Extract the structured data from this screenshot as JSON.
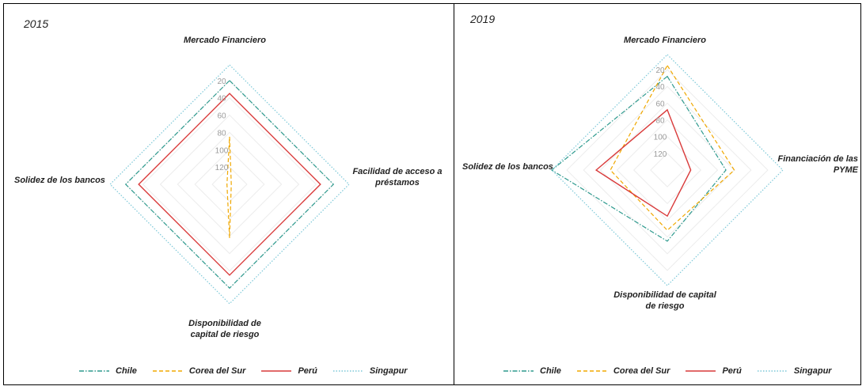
{
  "chart_data": [
    {
      "type": "radar",
      "title": "2015",
      "axes": [
        "Mercado Financiero",
        "Facilidad de acceso a préstamos",
        "Disponibilidad de capital de riesgo",
        "Solidez de los bancos"
      ],
      "axis_label_lines": [
        [
          "Mercado Financiero"
        ],
        [
          "Facilidad de acceso a",
          "préstamos"
        ],
        [
          "Disponibilidad de",
          "capital de riesgo"
        ],
        [
          "Solidez de los bancos"
        ]
      ],
      "ticks": [
        "20",
        "40",
        "60",
        "80",
        "100",
        "120"
      ],
      "scale": {
        "min": 1,
        "max": 140,
        "reversed": true
      },
      "series": [
        {
          "name": "Chile",
          "color": "#2e9a8e",
          "dash": "dashdot",
          "values": [
            20,
            20,
            20,
            20
          ]
        },
        {
          "name": "Corea del Sur",
          "color": "#f0a800",
          "dash": "dashed",
          "values": [
            85,
            138,
            78,
            137
          ]
        },
        {
          "name": "Perú",
          "color": "#d93a3a",
          "dash": "solid",
          "values": [
            35,
            35,
            35,
            35
          ]
        },
        {
          "name": "Singapur",
          "color": "#7cc8d8",
          "dash": "dotted",
          "values": [
            2,
            2,
            2,
            2
          ]
        }
      ]
    },
    {
      "type": "radar",
      "title": "2019",
      "axes": [
        "Mercado Financiero",
        "Financiación de las PYME",
        "Disponibilidad de capital de riesgo",
        "Solidez de los bancos"
      ],
      "axis_label_lines": [
        [
          "Mercado Financiero"
        ],
        [
          "Financiación de las",
          "PYME"
        ],
        [
          "Disponibilidad de capital",
          "de riesgo"
        ],
        [
          "Solidez de los bancos"
        ]
      ],
      "ticks": [
        "20",
        "40",
        "60",
        "80",
        "100",
        "120"
      ],
      "scale": {
        "min": 1,
        "max": 140,
        "reversed": true
      },
      "series": [
        {
          "name": "Chile",
          "color": "#2e9a8e",
          "dash": "dashdot",
          "values": [
            28,
            70,
            55,
            2
          ]
        },
        {
          "name": "Corea del Sur",
          "color": "#f0a800",
          "dash": "dashed",
          "values": [
            15,
            60,
            68,
            72
          ]
        },
        {
          "name": "Perú",
          "color": "#d93a3a",
          "dash": "solid",
          "values": [
            68,
            112,
            85,
            55
          ]
        },
        {
          "name": "Singapur",
          "color": "#7cc8d8",
          "dash": "dotted",
          "values": [
            2,
            2,
            2,
            2
          ]
        }
      ]
    }
  ]
}
